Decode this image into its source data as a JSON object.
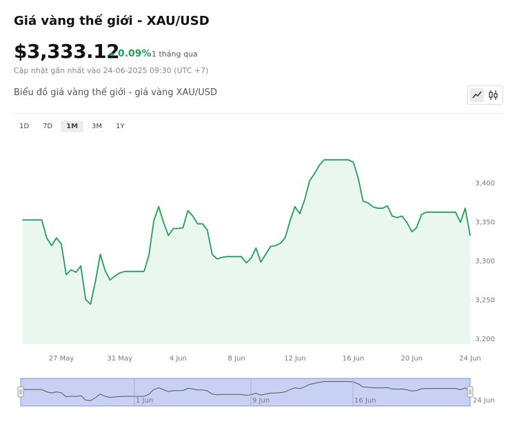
{
  "header": {
    "title": "Giá vàng thế giới - XAU/USD",
    "price": "$3,333.12",
    "change": "0.09%",
    "period": "1 tháng qua",
    "updated": "Cập nhật gần nhất vào 24-06-2025 09:30 (UTC +7)"
  },
  "chart_title": "Biểu đồ giá vàng thế giới - giá vàng XAU/USD",
  "ranges": [
    "1D",
    "7D",
    "1M",
    "3M",
    "1Y"
  ],
  "selected_range": "1M",
  "chart_data": {
    "type": "area",
    "color": "#1e9e5a",
    "categories": [
      null,
      null,
      null,
      null,
      null,
      null,
      null,
      null,
      "27 May",
      null,
      null,
      null,
      null,
      null,
      null,
      null,
      null,
      null,
      null,
      null,
      "31 May",
      null,
      null,
      null,
      null,
      null,
      null,
      null,
      null,
      null,
      null,
      null,
      "4 Jun",
      null,
      null,
      null,
      null,
      null,
      null,
      null,
      null,
      null,
      null,
      null,
      "8 Jun",
      null,
      null,
      null,
      null,
      null,
      null,
      null,
      null,
      null,
      null,
      null,
      "12 Jun",
      null,
      null,
      null,
      null,
      null,
      null,
      null,
      null,
      null,
      null,
      null,
      "16 Jun",
      null,
      null,
      null,
      null,
      null,
      null,
      null,
      null,
      null,
      null,
      null,
      "20 Jun",
      null,
      null,
      null,
      null,
      null,
      null,
      null,
      null,
      null,
      null,
      null,
      "24 Jun"
    ],
    "values": [
      3353,
      3353,
      3353,
      3353,
      3353,
      3330,
      3320,
      3330,
      3322,
      3283,
      3289,
      3286,
      3294,
      3251,
      3245,
      3274,
      3309,
      3288,
      3276,
      3281,
      3285,
      3287,
      3287,
      3287,
      3287,
      3287,
      3308,
      3352,
      3370,
      3350,
      3333,
      3342,
      3342,
      3343,
      3365,
      3358,
      3348,
      3348,
      3340,
      3309,
      3303,
      3305,
      3306,
      3306,
      3306,
      3306,
      3298,
      3304,
      3317,
      3299,
      3309,
      3319,
      3320,
      3323,
      3330,
      3352,
      3370,
      3361,
      3379,
      3403,
      3412,
      3423,
      3430,
      3430,
      3430,
      3430,
      3430,
      3430,
      3427,
      3407,
      3377,
      3375,
      3370,
      3368,
      3368,
      3371,
      3358,
      3356,
      3358,
      3350,
      3338,
      3343,
      3360,
      3363,
      3363,
      3363,
      3363,
      3363,
      3363,
      3363,
      3350,
      3368,
      3333
    ],
    "ylim": [
      3194,
      3460
    ],
    "yticks": [
      {
        "value": 3200,
        "label": "3,200"
      },
      {
        "value": 3250,
        "label": "3,250"
      },
      {
        "value": 3300,
        "label": "3,300"
      },
      {
        "value": 3350,
        "label": "3,350"
      },
      {
        "value": 3400,
        "label": "3,400"
      }
    ]
  },
  "navigator": {
    "labels": [
      "1 Jun",
      "9 Jun",
      "16 Jun",
      "24 Jun"
    ]
  }
}
